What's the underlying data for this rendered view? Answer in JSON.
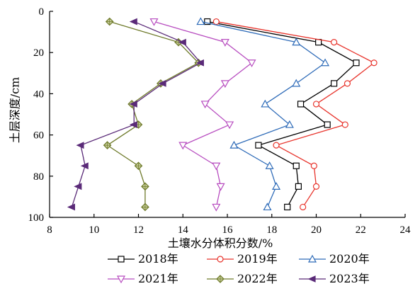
{
  "chart_data": {
    "type": "line",
    "xlabel": "土壤水分体积分数/%",
    "ylabel": "土层深度/cm",
    "xlim": [
      8,
      24
    ],
    "ylim": [
      0,
      100
    ],
    "y_inverted": true,
    "x_ticks": [
      8,
      10,
      12,
      14,
      16,
      18,
      20,
      22,
      24
    ],
    "y_ticks": [
      0,
      20,
      40,
      60,
      80,
      100
    ],
    "grid": false,
    "legend_position": "bottom",
    "series": [
      {
        "name": "2018年",
        "color": "#000000",
        "marker": "square",
        "points": [
          [
            15.1,
            5
          ],
          [
            20.1,
            15
          ],
          [
            21.8,
            25
          ],
          [
            20.8,
            35
          ],
          [
            19.3,
            45
          ],
          [
            20.5,
            55
          ],
          [
            17.4,
            65
          ],
          [
            19.1,
            75
          ],
          [
            19.2,
            85
          ],
          [
            18.7,
            95
          ]
        ]
      },
      {
        "name": "2019年",
        "color": "#e8342c",
        "marker": "circle",
        "points": [
          [
            15.5,
            5
          ],
          [
            20.8,
            15
          ],
          [
            22.6,
            25
          ],
          [
            21.4,
            35
          ],
          [
            20.0,
            45
          ],
          [
            21.3,
            55
          ],
          [
            18.2,
            65
          ],
          [
            19.9,
            75
          ],
          [
            20.0,
            85
          ],
          [
            19.4,
            95
          ]
        ]
      },
      {
        "name": "2020年",
        "color": "#2e6bb8",
        "marker": "triangle-up",
        "points": [
          [
            14.8,
            5
          ],
          [
            19.1,
            15
          ],
          [
            20.4,
            25
          ],
          [
            19.1,
            35
          ],
          [
            17.7,
            45
          ],
          [
            18.8,
            55
          ],
          [
            16.3,
            65
          ],
          [
            17.9,
            75
          ],
          [
            18.2,
            85
          ],
          [
            17.8,
            95
          ]
        ]
      },
      {
        "name": "2021年",
        "color": "#b84ec0",
        "marker": "triangle-down",
        "points": [
          [
            12.7,
            5
          ],
          [
            15.9,
            15
          ],
          [
            17.1,
            25
          ],
          [
            15.9,
            35
          ],
          [
            15.0,
            45
          ],
          [
            16.1,
            55
          ],
          [
            14.0,
            65
          ],
          [
            15.5,
            75
          ],
          [
            15.7,
            85
          ],
          [
            15.5,
            95
          ]
        ]
      },
      {
        "name": "2022年",
        "color": "#6e7a2a",
        "marker": "diamond",
        "points": [
          [
            10.7,
            5
          ],
          [
            13.8,
            15
          ],
          [
            14.7,
            25
          ],
          [
            13.0,
            35
          ],
          [
            11.7,
            45
          ],
          [
            12.0,
            55
          ],
          [
            10.6,
            65
          ],
          [
            12.0,
            75
          ],
          [
            12.3,
            85
          ],
          [
            12.3,
            95
          ]
        ]
      },
      {
        "name": "2023年",
        "color": "#5a2a78",
        "marker": "triangle-left",
        "points": [
          [
            11.8,
            5
          ],
          [
            14.0,
            15
          ],
          [
            14.8,
            25
          ],
          [
            13.1,
            35
          ],
          [
            11.8,
            45
          ],
          [
            11.8,
            55
          ],
          [
            9.4,
            65
          ],
          [
            9.6,
            75
          ],
          [
            9.3,
            85
          ],
          [
            9.0,
            95
          ]
        ]
      }
    ]
  }
}
